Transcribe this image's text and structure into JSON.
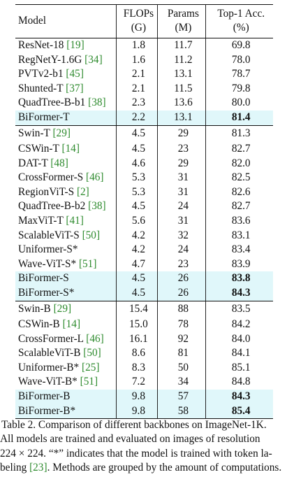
{
  "table": {
    "headers": {
      "model": "Model",
      "flops_line1": "FLOPs",
      "flops_line2": "(G)",
      "params_line1": "Params",
      "params_line2": "(M)",
      "acc_line1": "Top-1 Acc.",
      "acc_line2": "(%)"
    },
    "groups": [
      {
        "rows": [
          {
            "model": "ResNet-18",
            "ref": "[19]",
            "flops": "1.8",
            "params": "11.7",
            "acc": "69.8"
          },
          {
            "model": "RegNetY-1.6G",
            "ref": "[34]",
            "flops": "1.6",
            "params": "11.2",
            "acc": "78.0"
          },
          {
            "model": "PVTv2-b1",
            "ref": "[45]",
            "flops": "2.1",
            "params": "13.1",
            "acc": "78.7"
          },
          {
            "model": "Shunted-T",
            "ref": "[37]",
            "flops": "2.1",
            "params": "11.5",
            "acc": "79.8"
          },
          {
            "model": "QuadTree-B-b1",
            "ref": "[38]",
            "flops": "2.3",
            "params": "13.6",
            "acc": "80.0"
          },
          {
            "model": "BiFormer-T",
            "ref": "",
            "flops": "2.2",
            "params": "13.1",
            "acc": "81.4",
            "highlight": true,
            "bold_acc": true
          }
        ]
      },
      {
        "rows": [
          {
            "model": "Swin-T",
            "ref": "[29]",
            "flops": "4.5",
            "params": "29",
            "acc": "81.3"
          },
          {
            "model": "CSWin-T",
            "ref": "[14]",
            "flops": "4.5",
            "params": "23",
            "acc": "82.7"
          },
          {
            "model": "DAT-T",
            "ref": "[48]",
            "flops": "4.6",
            "params": "29",
            "acc": "82.0"
          },
          {
            "model": "CrossFormer-S",
            "ref": "[46]",
            "flops": "5.3",
            "params": "31",
            "acc": "82.5"
          },
          {
            "model": "RegionViT-S",
            "ref": "[2]",
            "flops": "5.3",
            "params": "31",
            "acc": "82.6"
          },
          {
            "model": "QuadTree-B-b2",
            "ref": "[38]",
            "flops": "4.5",
            "params": "24",
            "acc": "82.7"
          },
          {
            "model": "MaxViT-T",
            "ref": "[41]",
            "flops": "5.6",
            "params": "31",
            "acc": "83.6"
          },
          {
            "model": "ScalableViT-S",
            "ref": "[50]",
            "flops": "4.2",
            "params": "32",
            "acc": "83.1"
          },
          {
            "model": "Uniformer-S*",
            "ref": "",
            "flops": "4.2",
            "params": "24",
            "acc": "83.4"
          },
          {
            "model": "Wave-ViT-S*",
            "ref": "[51]",
            "flops": "4.7",
            "params": "23",
            "acc": "83.9"
          },
          {
            "model": "BiFormer-S",
            "ref": "",
            "flops": "4.5",
            "params": "26",
            "acc": "83.8",
            "highlight": true,
            "bold_acc": true
          },
          {
            "model": "BiFormer-S*",
            "ref": "",
            "flops": "4.5",
            "params": "26",
            "acc": "84.3",
            "highlight": true,
            "bold_acc": true
          }
        ]
      },
      {
        "rows": [
          {
            "model": "Swin-B",
            "ref": "[29]",
            "flops": "15.4",
            "params": "88",
            "acc": "83.5"
          },
          {
            "model": "CSWin-B",
            "ref": "[14]",
            "flops": "15.0",
            "params": "78",
            "acc": "84.2"
          },
          {
            "model": "CrossFormer-L",
            "ref": "[46]",
            "flops": "16.1",
            "params": "92",
            "acc": "84.0"
          },
          {
            "model": "ScalableViT-B",
            "ref": "[50]",
            "flops": "8.6",
            "params": "81",
            "acc": "84.1"
          },
          {
            "model": "Uniformer-B*",
            "ref": "[25]",
            "flops": "8.3",
            "params": "50",
            "acc": "85.1"
          },
          {
            "model": "Wave-ViT-B*",
            "ref": "[51]",
            "flops": "7.2",
            "params": "34",
            "acc": "84.8"
          },
          {
            "model": "BiFormer-B",
            "ref": "",
            "flops": "9.8",
            "params": "57",
            "acc": "84.3",
            "highlight": true,
            "bold_acc": true
          },
          {
            "model": "BiFormer-B*",
            "ref": "",
            "flops": "9.8",
            "params": "58",
            "acc": "85.4",
            "highlight": true,
            "bold_acc": true
          }
        ]
      }
    ]
  },
  "caption": {
    "line1": "Table 2.  Comparison of different backbones on ImageNet-1K.",
    "line2": "All models are trained and evaluated on images of resolution",
    "line3": "224 × 224.  “*” indicates that the model is trained with token la-",
    "line4_pre": "beling ",
    "line4_ref": "[23]",
    "line4_post": ". Methods are grouped by the amount of computations."
  },
  "colors": {
    "highlight_row": "#e0f7fa",
    "reference_link": "#2e8b2e"
  }
}
